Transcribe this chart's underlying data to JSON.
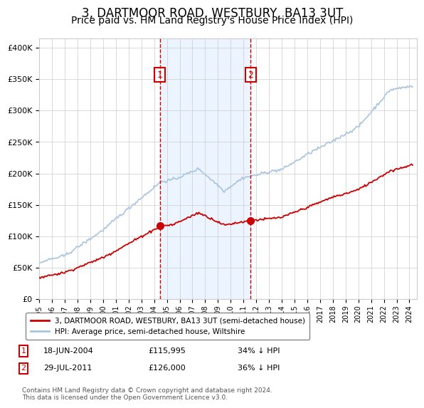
{
  "title": "3, DARTMOOR ROAD, WESTBURY, BA13 3UT",
  "subtitle": "Price paid vs. HM Land Registry's House Price Index (HPI)",
  "title_fontsize": 12,
  "subtitle_fontsize": 10,
  "hpi_color": "#aac4e0",
  "hpi_linewidth": 1.2,
  "price_color": "#cc0000",
  "price_linewidth": 1.3,
  "marker_color": "#cc0000",
  "sale1_date_num": 2004.46,
  "sale1_price": 115995,
  "sale1_label": "18-JUN-2004",
  "sale1_hpi_pct": "34% ↓ HPI",
  "sale2_date_num": 2011.57,
  "sale2_price": 126000,
  "sale2_label": "29-JUL-2011",
  "sale2_hpi_pct": "36% ↓ HPI",
  "shading_color": "#ddeeff",
  "shading_alpha": 0.55,
  "vline_color": "#cc0000",
  "vline_style": "--",
  "ylabel_ticks": [
    "£0",
    "£50K",
    "£100K",
    "£150K",
    "£200K",
    "£250K",
    "£300K",
    "£350K",
    "£400K"
  ],
  "ytick_values": [
    0,
    50000,
    100000,
    150000,
    200000,
    250000,
    300000,
    350000,
    400000
  ],
  "ylim": [
    0,
    415000
  ],
  "xlim_start": 1995.0,
  "xlim_end": 2024.6,
  "background_color": "#ffffff",
  "grid_color": "#cccccc",
  "legend_label_red": "3, DARTMOOR ROAD, WESTBURY, BA13 3UT (semi-detached house)",
  "legend_label_blue": "HPI: Average price, semi-detached house, Wiltshire",
  "footnote": "Contains HM Land Registry data © Crown copyright and database right 2024.\nThis data is licensed under the Open Government Licence v3.0.",
  "box_color": "#cc0000"
}
